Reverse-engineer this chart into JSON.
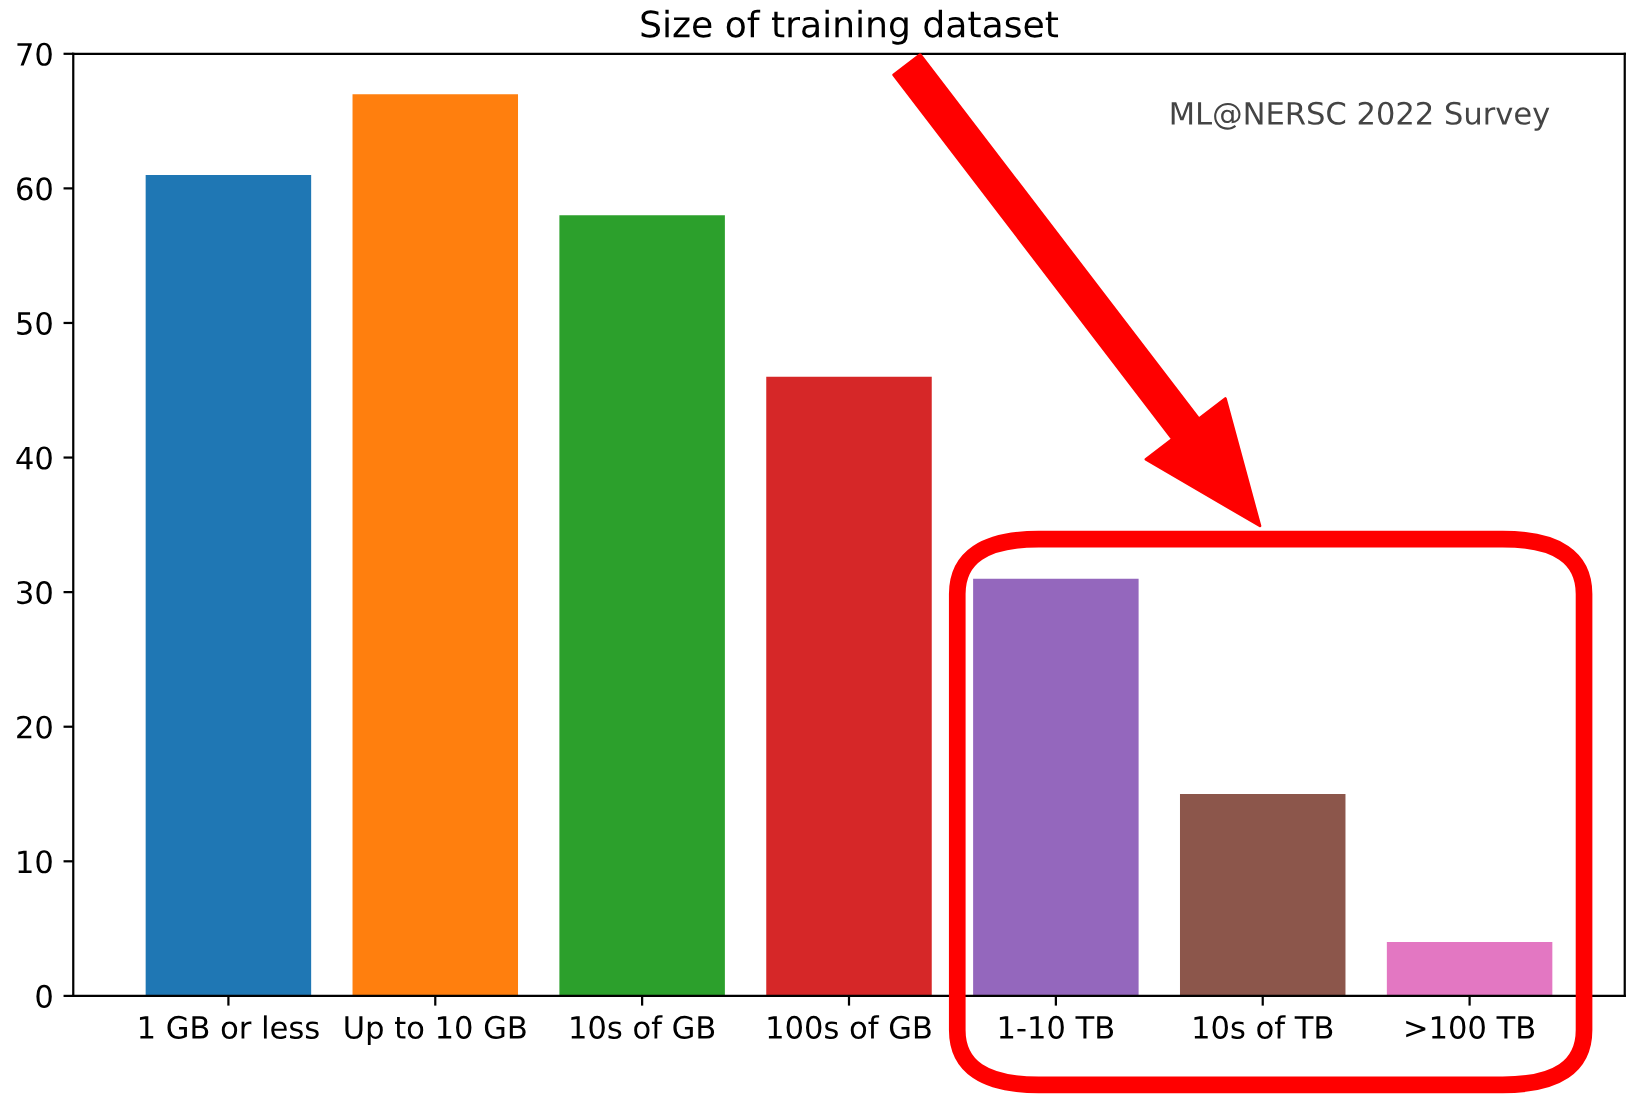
{
  "chart_data": {
    "type": "bar",
    "title": "Size of training dataset",
    "categories": [
      "1 GB or less",
      "Up to 10 GB",
      "10s of GB",
      "100s of GB",
      "1-10 TB",
      "10s of TB",
      ">100 TB"
    ],
    "values": [
      61,
      67,
      58,
      46,
      31,
      15,
      4
    ],
    "colors": [
      "#1f77b4",
      "#ff7f0e",
      "#2ca02c",
      "#d62728",
      "#9467bd",
      "#8c564b",
      "#e377c2"
    ],
    "ylim": [
      0,
      70
    ],
    "yticks": [
      0,
      10,
      20,
      30,
      40,
      50,
      60,
      70
    ],
    "grid": false,
    "annotations": [
      "ML@NERSC 2022 Survey"
    ]
  }
}
